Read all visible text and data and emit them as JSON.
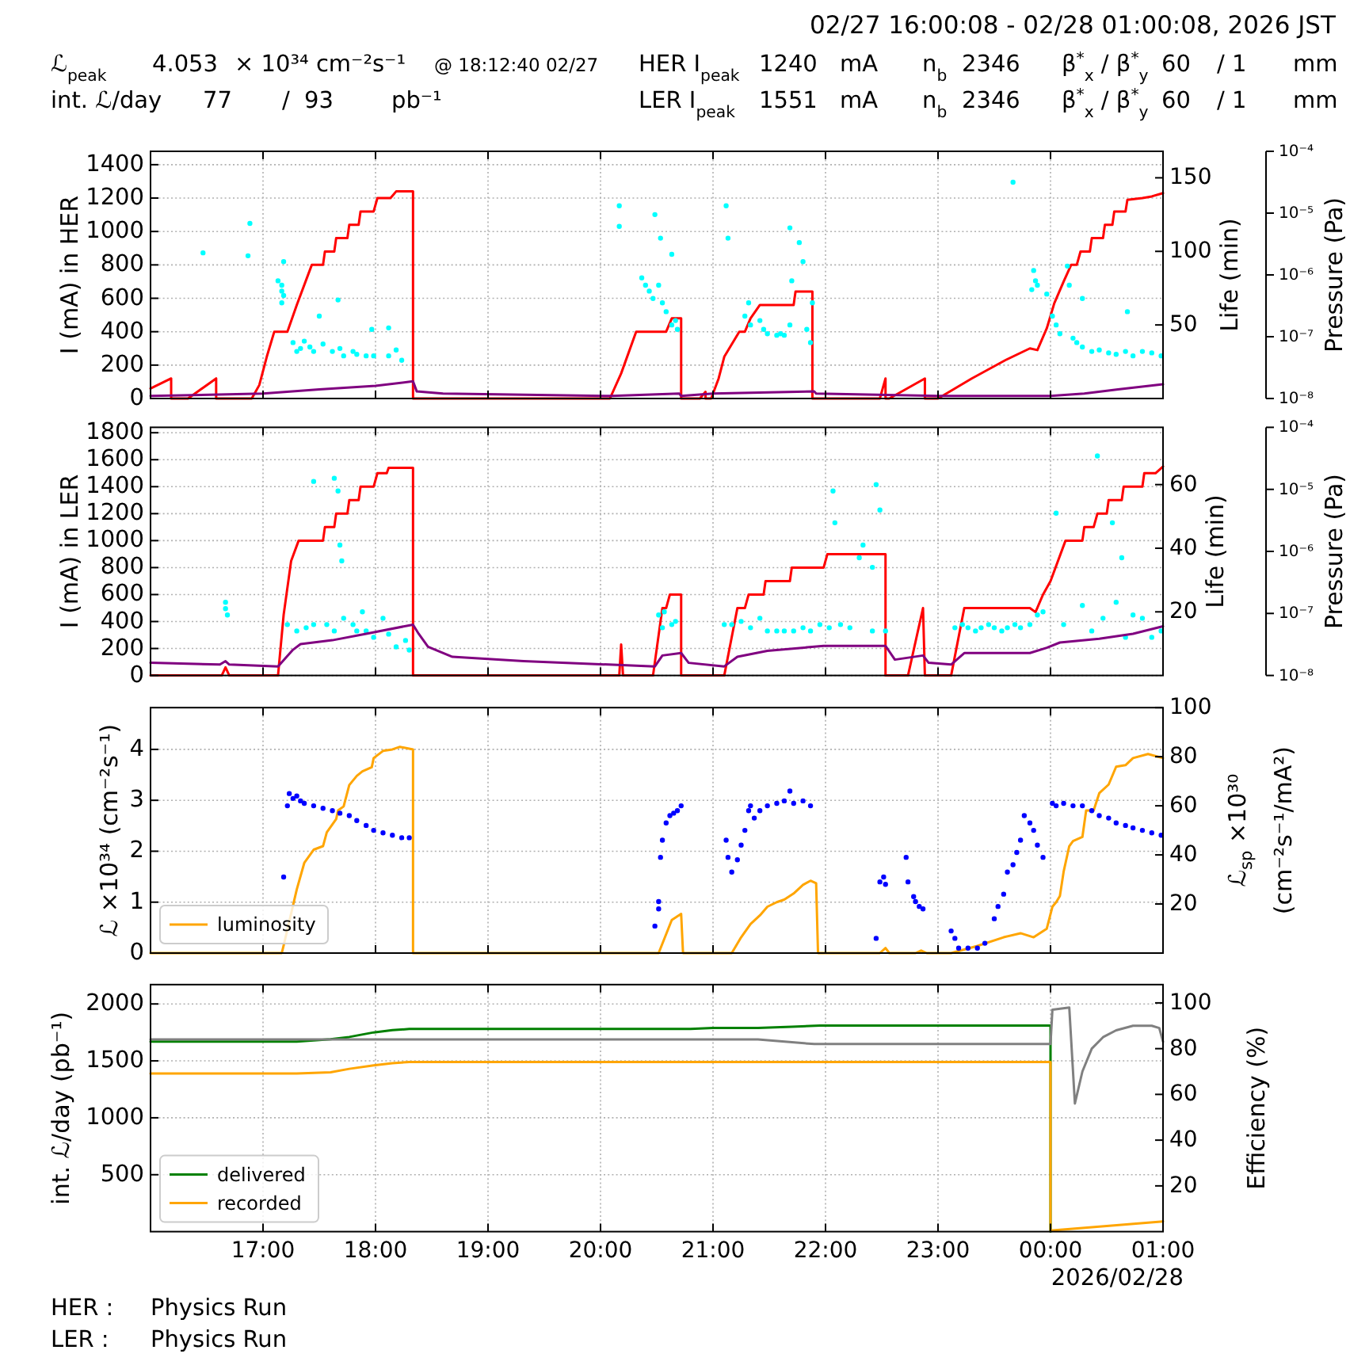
{
  "chart_data": [
    {
      "type": "line",
      "title": "02/27 16:00:08 - 02/28 01:00:08, 2026 JST",
      "annotations": [
        "ℒ$_{peak}$",
        "4.053",
        "× 10³⁴ cm⁻²s⁻¹",
        "@ 18:12:40 02/27",
        "HER I$_{peak}$",
        "1240",
        "mA",
        "n$_{b}$",
        "2346",
        "β$^{*}$$_{x}$ / β$^{*}$$_{y}$",
        "60",
        "/ 1",
        "mm",
        "int. ℒ/day",
        "77",
        "/",
        "93",
        "pb⁻¹",
        "LER I$_{peak}$",
        "1551",
        "mA",
        "n$_{b}$",
        "2346",
        "β$^{*}$$_{x}$ / β$^{*}$$_{y}$",
        "60",
        "/ 1",
        "mm"
      ],
      "xlim": [
        "2026-02-27T16:00",
        "2026-02-28T01:00"
      ],
      "xticks": [
        {
          "value": "2026-02-27T17:00",
          "label": null
        },
        {
          "value": "2026-02-27T18:00",
          "label": null
        },
        {
          "value": "2026-02-27T19:00",
          "label": null
        },
        {
          "value": "2026-02-27T20:00",
          "label": null
        },
        {
          "value": "2026-02-27T21:00",
          "label": null
        },
        {
          "value": "2026-02-27T22:00",
          "label": null
        },
        {
          "value": "2026-02-27T23:00",
          "label": null
        },
        {
          "value": "2026-02-28T00:00",
          "label": null
        },
        {
          "value": "2026-02-28T01:00",
          "label": null
        }
      ],
      "tick_labels": "y",
      "ylabel": "I (mA) in HER",
      "ylim": [
        0,
        1480
      ],
      "yticks": [
        0,
        200,
        400,
        600,
        800,
        1000,
        1200,
        1400
      ],
      "y2label": "Life (min)",
      "y2lim": [
        0,
        168
      ],
      "y2ticks": [
        50,
        100,
        150
      ],
      "y3label": "Pressure (Pa)",
      "y3lim": [
        1e-08,
        0.0001
      ],
      "y3ticks": [
        {
          "value": 1e-08,
          "label": "10⁻⁸"
        },
        {
          "value": 1e-07,
          "label": "10⁻⁷"
        },
        {
          "value": 1e-06,
          "label": "10⁻⁶"
        },
        {
          "value": 1e-05,
          "label": "10⁻⁵"
        },
        {
          "value": 0.0001,
          "label": "10⁻⁴"
        }
      ],
      "log": "y3",
      "grid": true,
      "series": [
        {
          "color": "#ff0000",
          "x": [
            "2026-02-27T16:00",
            "2026-02-27T16:11",
            "2026-02-27T16:11",
            "2026-02-27T16:20",
            "2026-02-27T16:35",
            "2026-02-27T16:35",
            "2026-02-27T16:54",
            "2026-02-27T16:58",
            "2026-02-27T17:02",
            "2026-02-27T17:06",
            "2026-02-27T17:13",
            "2026-02-27T17:18",
            "2026-02-27T17:26",
            "2026-02-27T17:32",
            "2026-02-27T17:33",
            "2026-02-27T17:38",
            "2026-02-27T17:39",
            "2026-02-27T17:45",
            "2026-02-27T17:46",
            "2026-02-27T17:51",
            "2026-02-27T17:52",
            "2026-02-27T17:59",
            "2026-02-27T18:01",
            "2026-02-27T18:08",
            "2026-02-27T18:11",
            "2026-02-27T18:20",
            "2026-02-27T18:20",
            "2026-02-27T20:05",
            "2026-02-27T20:11",
            "2026-02-27T20:19",
            "2026-02-27T20:35",
            "2026-02-27T20:38",
            "2026-02-27T20:43",
            "2026-02-27T20:43",
            "2026-02-27T20:53",
            "2026-02-27T20:56",
            "2026-02-27T20:56",
            "2026-02-27T20:59",
            "2026-02-27T21:03",
            "2026-02-27T21:06",
            "2026-02-27T21:14",
            "2026-02-27T21:17",
            "2026-02-27T21:20",
            "2026-02-27T21:25",
            "2026-02-27T21:43",
            "2026-02-27T21:44",
            "2026-02-27T21:53",
            "2026-02-27T21:53",
            "2026-02-27T22:29",
            "2026-02-27T22:32",
            "2026-02-27T22:32",
            "2026-02-27T22:34",
            "2026-02-27T22:53",
            "2026-02-27T22:53",
            "2026-02-27T23:00",
            "2026-02-27T23:18",
            "2026-02-27T23:36",
            "2026-02-27T23:49",
            "2026-02-27T23:53",
            "2026-02-27T23:58",
            "2026-02-28T00:02",
            "2026-02-28T00:07",
            "2026-02-28T00:11",
            "2026-02-28T00:14",
            "2026-02-28T00:16",
            "2026-02-28T00:21",
            "2026-02-28T00:22",
            "2026-02-28T00:28",
            "2026-02-28T00:29",
            "2026-02-28T00:33",
            "2026-02-28T00:34",
            "2026-02-28T00:40",
            "2026-02-28T00:41",
            "2026-02-28T00:49",
            "2026-02-28T00:54",
            "2026-02-28T01:00"
          ],
          "values": [
            60,
            120,
            0,
            0,
            120,
            0,
            0,
            80,
            250,
            400,
            400,
            560,
            800,
            800,
            880,
            880,
            960,
            960,
            1040,
            1040,
            1120,
            1120,
            1200,
            1200,
            1240,
            1240,
            0,
            0,
            150,
            400,
            400,
            480,
            480,
            0,
            0,
            40,
            0,
            0,
            120,
            250,
            400,
            400,
            480,
            560,
            560,
            640,
            640,
            0,
            0,
            120,
            0,
            0,
            120,
            0,
            0,
            120,
            230,
            300,
            290,
            420,
            570,
            700,
            800,
            800,
            880,
            880,
            960,
            960,
            1040,
            1040,
            1120,
            1120,
            1190,
            1200,
            1210,
            1230
          ]
        },
        {
          "type": "scatter",
          "axis": "y2",
          "color": "#00ffff",
          "marker": "circle",
          "x": [
            "2026-02-27T16:28",
            "2026-02-27T16:52",
            "2026-02-27T16:53",
            "2026-02-27T17:08",
            "2026-02-27T17:10",
            "2026-02-27T17:10",
            "2026-02-27T17:11",
            "2026-02-27T17:10",
            "2026-02-27T17:11",
            "2026-02-27T17:16",
            "2026-02-27T17:18",
            "2026-02-27T17:20",
            "2026-02-27T17:22",
            "2026-02-27T17:25",
            "2026-02-27T17:27",
            "2026-02-27T17:30",
            "2026-02-27T17:32",
            "2026-02-27T17:37",
            "2026-02-27T17:40",
            "2026-02-27T17:41",
            "2026-02-27T17:43",
            "2026-02-27T17:48",
            "2026-02-27T17:50",
            "2026-02-27T17:55",
            "2026-02-27T17:58",
            "2026-02-27T17:59",
            "2026-02-27T18:07",
            "2026-02-27T18:07",
            "2026-02-27T18:11",
            "2026-02-27T18:14",
            "2026-02-27T20:10",
            "2026-02-27T20:10",
            "2026-02-27T20:22",
            "2026-02-27T20:24",
            "2026-02-27T20:26",
            "2026-02-27T20:28",
            "2026-02-27T20:29",
            "2026-02-27T20:31",
            "2026-02-27T20:32",
            "2026-02-27T20:33",
            "2026-02-27T20:35",
            "2026-02-27T20:38",
            "2026-02-27T20:38",
            "2026-02-27T20:40",
            "2026-02-27T20:41",
            "2026-02-27T21:07",
            "2026-02-27T21:08",
            "2026-02-27T21:17",
            "2026-02-27T21:19",
            "2026-02-27T21:20",
            "2026-02-27T21:25",
            "2026-02-27T21:27",
            "2026-02-27T21:29",
            "2026-02-27T21:34",
            "2026-02-27T21:36",
            "2026-02-27T21:38",
            "2026-02-27T21:41",
            "2026-02-27T21:41",
            "2026-02-27T21:42",
            "2026-02-27T21:46",
            "2026-02-27T21:48",
            "2026-02-27T21:50",
            "2026-02-27T21:52",
            "2026-02-27T21:53",
            "2026-02-27T23:40",
            "2026-02-27T23:50",
            "2026-02-27T23:51",
            "2026-02-27T23:52",
            "2026-02-27T23:53",
            "2026-02-27T23:58",
            "2026-02-28T00:01",
            "2026-02-28T00:03",
            "2026-02-28T00:05",
            "2026-02-28T00:09",
            "2026-02-28T00:10",
            "2026-02-28T00:12",
            "2026-02-28T00:14",
            "2026-02-28T00:17",
            "2026-02-28T00:17",
            "2026-02-28T00:22",
            "2026-02-28T00:26",
            "2026-02-28T00:31",
            "2026-02-28T00:35",
            "2026-02-28T00:40",
            "2026-02-28T00:41",
            "2026-02-28T00:44",
            "2026-02-28T00:49",
            "2026-02-28T00:54",
            "2026-02-28T00:59"
          ],
          "values": [
            99,
            97,
            119,
            80,
            77,
            73,
            70,
            65,
            93,
            38,
            32,
            34,
            39,
            35,
            32,
            56,
            37,
            32,
            67,
            34,
            29,
            32,
            30,
            29,
            47,
            29,
            29,
            48,
            33,
            26,
            131,
            117,
            82,
            77,
            73,
            68,
            125,
            77,
            109,
            65,
            59,
            98,
            50,
            53,
            47,
            131,
            109,
            56,
            65,
            50,
            53,
            47,
            44,
            43,
            44,
            43,
            116,
            50,
            80,
            106,
            93,
            47,
            38,
            65,
            147,
            74,
            87,
            80,
            77,
            71,
            56,
            50,
            44,
            90,
            77,
            41,
            38,
            68,
            35,
            32,
            33,
            31,
            30,
            32,
            59,
            29,
            32,
            31,
            29
          ]
        },
        {
          "axis": "y3",
          "color": "#800080",
          "x": [
            "2026-02-27T16:00",
            "2026-02-27T17:00",
            "2026-02-27T17:30",
            "2026-02-27T18:00",
            "2026-02-27T18:20",
            "2026-02-27T18:22",
            "2026-02-27T18:36",
            "2026-02-27T20:06",
            "2026-02-27T20:42",
            "2026-02-27T20:43",
            "2026-02-27T21:00",
            "2026-02-27T21:54",
            "2026-02-27T21:55",
            "2026-02-27T23:00",
            "2026-02-28T00:00",
            "2026-02-28T00:18",
            "2026-02-28T00:36",
            "2026-02-28T01:00"
          ],
          "values": [
            1.1e-08,
            1.2e-08,
            1.4e-08,
            1.6e-08,
            1.9e-08,
            1.3e-08,
            1.2e-08,
            1.1e-08,
            1.2e-08,
            1.1e-08,
            1.2e-08,
            1.3e-08,
            1.2e-08,
            1.1e-08,
            1.1e-08,
            1.2e-08,
            1.4e-08,
            1.7e-08
          ]
        }
      ]
    },
    {
      "type": "line",
      "xlim": [
        "2026-02-27T16:00",
        "2026-02-28T01:00"
      ],
      "xticks": [
        {
          "value": "2026-02-27T17:00",
          "label": null
        },
        {
          "value": "2026-02-27T18:00",
          "label": null
        },
        {
          "value": "2026-02-27T19:00",
          "label": null
        },
        {
          "value": "2026-02-27T20:00",
          "label": null
        },
        {
          "value": "2026-02-27T21:00",
          "label": null
        },
        {
          "value": "2026-02-27T22:00",
          "label": null
        },
        {
          "value": "2026-02-27T23:00",
          "label": null
        },
        {
          "value": "2026-02-28T00:00",
          "label": null
        },
        {
          "value": "2026-02-28T01:00",
          "label": null
        }
      ],
      "tick_labels": "y",
      "ylabel": "I (mA) in LER",
      "ylim": [
        0,
        1840
      ],
      "yticks": [
        0,
        200,
        400,
        600,
        800,
        1000,
        1200,
        1400,
        1600,
        1800
      ],
      "y2label": "Life (min)",
      "y2lim": [
        0,
        78
      ],
      "y2ticks": [
        20,
        40,
        60
      ],
      "y3label": "Pressure (Pa)",
      "y3lim": [
        1e-08,
        0.0001
      ],
      "y3ticks": [
        {
          "value": 1e-08,
          "label": "10⁻⁸"
        },
        {
          "value": 1e-07,
          "label": "10⁻⁷"
        },
        {
          "value": 1e-06,
          "label": "10⁻⁶"
        },
        {
          "value": 1e-05,
          "label": "10⁻⁵"
        },
        {
          "value": 0.0001,
          "label": "10⁻⁴"
        }
      ],
      "log": "y3",
      "grid": true,
      "series": [
        {
          "color": "#ff0000",
          "x": [
            "2026-02-27T16:00",
            "2026-02-27T16:38",
            "2026-02-27T16:40",
            "2026-02-27T16:42",
            "2026-02-27T17:08",
            "2026-02-27T17:11",
            "2026-02-27T17:15",
            "2026-02-27T17:19",
            "2026-02-27T17:32",
            "2026-02-27T17:33",
            "2026-02-27T17:38",
            "2026-02-27T17:39",
            "2026-02-27T17:45",
            "2026-02-27T17:46",
            "2026-02-27T17:51",
            "2026-02-27T17:52",
            "2026-02-27T17:59",
            "2026-02-27T18:01",
            "2026-02-27T18:06",
            "2026-02-27T18:07",
            "2026-02-27T18:20",
            "2026-02-27T18:20",
            "2026-02-27T20:10",
            "2026-02-27T20:11",
            "2026-02-27T20:12",
            "2026-02-27T20:28",
            "2026-02-27T20:33",
            "2026-02-27T20:35",
            "2026-02-27T20:37",
            "2026-02-27T20:43",
            "2026-02-27T20:43",
            "2026-02-27T21:06",
            "2026-02-27T21:13",
            "2026-02-27T21:17",
            "2026-02-27T21:19",
            "2026-02-27T21:27",
            "2026-02-27T21:28",
            "2026-02-27T21:41",
            "2026-02-27T21:42",
            "2026-02-27T21:59",
            "2026-02-27T22:01",
            "2026-02-27T22:32",
            "2026-02-27T22:32",
            "2026-02-27T22:44",
            "2026-02-27T22:52",
            "2026-02-27T22:53",
            "2026-02-27T23:07",
            "2026-02-27T23:14",
            "2026-02-27T23:49",
            "2026-02-27T23:52",
            "2026-02-27T23:56",
            "2026-02-28T00:00",
            "2026-02-28T00:08",
            "2026-02-28T00:17",
            "2026-02-28T00:18",
            "2026-02-28T00:23",
            "2026-02-28T00:25",
            "2026-02-28T00:30",
            "2026-02-28T00:31",
            "2026-02-28T00:38",
            "2026-02-28T00:39",
            "2026-02-28T00:49",
            "2026-02-28T00:50",
            "2026-02-28T00:56",
            "2026-02-28T01:00"
          ],
          "values": [
            0,
            0,
            60,
            0,
            0,
            450,
            850,
            1000,
            1000,
            1100,
            1100,
            1200,
            1200,
            1300,
            1300,
            1400,
            1400,
            1500,
            1500,
            1540,
            1540,
            0,
            0,
            230,
            0,
            0,
            500,
            500,
            600,
            600,
            0,
            0,
            500,
            500,
            600,
            600,
            700,
            700,
            800,
            800,
            900,
            900,
            0,
            0,
            500,
            0,
            0,
            500,
            500,
            470,
            600,
            700,
            1000,
            1000,
            1100,
            1100,
            1200,
            1200,
            1300,
            1300,
            1400,
            1400,
            1500,
            1500,
            1550
          ]
        },
        {
          "type": "scatter",
          "axis": "y2",
          "color": "#00ffff",
          "marker": "circle",
          "x": [
            "2026-02-27T16:40",
            "2026-02-27T16:40",
            "2026-02-27T16:41",
            "2026-02-27T17:13",
            "2026-02-27T17:18",
            "2026-02-27T17:23",
            "2026-02-27T17:27",
            "2026-02-27T17:27",
            "2026-02-27T17:34",
            "2026-02-27T17:38",
            "2026-02-27T17:38",
            "2026-02-27T17:40",
            "2026-02-27T17:41",
            "2026-02-27T17:42",
            "2026-02-27T17:43",
            "2026-02-27T17:48",
            "2026-02-27T17:50",
            "2026-02-27T17:53",
            "2026-02-27T17:55",
            "2026-02-27T17:59",
            "2026-02-27T18:04",
            "2026-02-27T18:07",
            "2026-02-27T18:11",
            "2026-02-27T18:16",
            "2026-02-27T18:18",
            "2026-02-27T20:31",
            "2026-02-27T20:33",
            "2026-02-27T20:34",
            "2026-02-27T20:38",
            "2026-02-27T20:40",
            "2026-02-27T21:06",
            "2026-02-27T21:10",
            "2026-02-27T21:15",
            "2026-02-27T21:20",
            "2026-02-27T21:25",
            "2026-02-27T21:29",
            "2026-02-27T21:34",
            "2026-02-27T21:38",
            "2026-02-27T21:43",
            "2026-02-27T21:48",
            "2026-02-27T21:52",
            "2026-02-27T21:57",
            "2026-02-27T22:02",
            "2026-02-27T22:04",
            "2026-02-27T22:05",
            "2026-02-27T22:08",
            "2026-02-27T22:13",
            "2026-02-27T22:18",
            "2026-02-27T22:20",
            "2026-02-27T22:25",
            "2026-02-27T22:25",
            "2026-02-27T22:27",
            "2026-02-27T22:29",
            "2026-02-27T22:32",
            "2026-02-27T23:09",
            "2026-02-27T23:16",
            "2026-02-27T23:23",
            "2026-02-27T23:30",
            "2026-02-27T23:37",
            "2026-02-27T23:44",
            "2026-02-27T23:49",
            "2026-02-27T23:53",
            "2026-02-27T23:56",
            "2026-02-28T00:03",
            "2026-02-28T00:07",
            "2026-02-28T00:17",
            "2026-02-28T00:22",
            "2026-02-28T00:25",
            "2026-02-28T00:28",
            "2026-02-28T00:33",
            "2026-02-28T00:35",
            "2026-02-28T00:38",
            "2026-02-28T00:40",
            "2026-02-28T00:44",
            "2026-02-28T00:49",
            "2026-02-28T00:54",
            "2026-02-28T00:59",
            "2026-02-27T23:13",
            "2026-02-27T23:20",
            "2026-02-27T23:27",
            "2026-02-27T23:34",
            "2026-02-27T23:41"
          ],
          "values": [
            23,
            21,
            19,
            16,
            14,
            15,
            61,
            16,
            16,
            62,
            14,
            58,
            41,
            36,
            18,
            16,
            14,
            20,
            14,
            12,
            18,
            13,
            9,
            11,
            8,
            19,
            15,
            20,
            16,
            17,
            16,
            16,
            17,
            15,
            18,
            14,
            14,
            14,
            14,
            15,
            14,
            16,
            15,
            58,
            48,
            16,
            15,
            37,
            41,
            34,
            14,
            60,
            52,
            14,
            15,
            15,
            15,
            15,
            15,
            15,
            16,
            19,
            20,
            51,
            16,
            22,
            14,
            69,
            18,
            48,
            23,
            37,
            12,
            19,
            18,
            12,
            14,
            16,
            14,
            16,
            14,
            16
          ]
        },
        {
          "axis": "y3",
          "color": "#800080",
          "x": [
            "2026-02-27T16:00",
            "2026-02-27T16:37",
            "2026-02-27T16:40",
            "2026-02-27T16:42",
            "2026-02-27T17:08",
            "2026-02-27T17:16",
            "2026-02-27T17:20",
            "2026-02-27T17:37",
            "2026-02-27T17:55",
            "2026-02-27T18:20",
            "2026-02-27T18:23",
            "2026-02-27T18:28",
            "2026-02-27T18:41",
            "2026-02-27T19:19",
            "2026-02-27T20:29",
            "2026-02-27T20:33",
            "2026-02-27T20:43",
            "2026-02-27T20:47",
            "2026-02-27T21:06",
            "2026-02-27T21:13",
            "2026-02-27T21:29",
            "2026-02-27T21:59",
            "2026-02-27T22:32",
            "2026-02-27T22:37",
            "2026-02-27T22:52",
            "2026-02-27T22:55",
            "2026-02-27T23:07",
            "2026-02-27T23:14",
            "2026-02-27T23:49",
            "2026-02-27T23:58",
            "2026-02-28T00:05",
            "2026-02-28T00:26",
            "2026-02-28T00:44",
            "2026-02-28T01:00"
          ],
          "values": [
            1.6e-08,
            1.5e-08,
            1.7e-08,
            1.5e-08,
            1.4e-08,
            2.6e-08,
            3.2e-08,
            3.7e-08,
            4.7e-08,
            6.6e-08,
            4.7e-08,
            2.9e-08,
            2e-08,
            1.7e-08,
            1.4e-08,
            2.1e-08,
            2.3e-08,
            1.6e-08,
            1.4e-08,
            2e-08,
            2.5e-08,
            3e-08,
            3e-08,
            1.8e-08,
            2.1e-08,
            1.6e-08,
            1.5e-08,
            2.3e-08,
            2.3e-08,
            2.8e-08,
            3.4e-08,
            3.9e-08,
            4.7e-08,
            6.2e-08
          ]
        }
      ]
    },
    {
      "type": "line",
      "xlim": [
        "2026-02-27T16:00",
        "2026-02-28T01:00"
      ],
      "xticks": [
        {
          "value": "2026-02-27T17:00",
          "label": null
        },
        {
          "value": "2026-02-27T18:00",
          "label": null
        },
        {
          "value": "2026-02-27T19:00",
          "label": null
        },
        {
          "value": "2026-02-27T20:00",
          "label": null
        },
        {
          "value": "2026-02-27T21:00",
          "label": null
        },
        {
          "value": "2026-02-27T22:00",
          "label": null
        },
        {
          "value": "2026-02-27T23:00",
          "label": null
        },
        {
          "value": "2026-02-28T00:00",
          "label": null
        },
        {
          "value": "2026-02-28T01:00",
          "label": null
        }
      ],
      "tick_labels": "y",
      "ylabel": "ℒ ×10³⁴ (cm⁻²s⁻¹)",
      "ylim": [
        0,
        4.82
      ],
      "yticks": [
        0,
        1,
        2,
        3,
        4
      ],
      "y2label": "ℒ$_{sp}$ ×10³⁰\n(cm⁻²s⁻¹/mA²)",
      "y2lim": [
        0,
        100
      ],
      "y2ticks": [
        20,
        40,
        60,
        80,
        100
      ],
      "grid": true,
      "legend": "bottom left",
      "series": [
        {
          "name": "luminosity",
          "color": "#ffa500",
          "x": [
            "2026-02-27T16:00",
            "2026-02-27T17:10",
            "2026-02-27T17:11",
            "2026-02-27T17:18",
            "2026-02-27T17:22",
            "2026-02-27T17:27",
            "2026-02-27T17:32",
            "2026-02-27T17:34",
            "2026-02-27T17:39",
            "2026-02-27T17:40",
            "2026-02-27T17:43",
            "2026-02-27T17:46",
            "2026-02-27T17:50",
            "2026-02-27T17:53",
            "2026-02-27T17:58",
            "2026-02-27T17:59",
            "2026-02-27T18:04",
            "2026-02-27T18:09",
            "2026-02-27T18:13",
            "2026-02-27T18:20",
            "2026-02-27T18:20",
            "2026-02-27T20:31",
            "2026-02-27T20:38",
            "2026-02-27T20:43",
            "2026-02-27T20:44",
            "2026-02-27T21:10",
            "2026-02-27T21:15",
            "2026-02-27T21:20",
            "2026-02-27T21:25",
            "2026-02-27T21:29",
            "2026-02-27T21:34",
            "2026-02-27T21:38",
            "2026-02-27T21:43",
            "2026-02-27T21:48",
            "2026-02-27T21:52",
            "2026-02-27T21:55",
            "2026-02-27T21:56",
            "2026-02-27T22:29",
            "2026-02-27T22:32",
            "2026-02-27T22:34",
            "2026-02-27T22:48",
            "2026-02-27T22:51",
            "2026-02-27T22:54",
            "2026-02-27T23:07",
            "2026-02-27T23:21",
            "2026-02-27T23:35",
            "2026-02-27T23:44",
            "2026-02-27T23:51",
            "2026-02-27T23:58",
            "2026-02-28T00:01",
            "2026-02-28T00:03",
            "2026-02-28T00:05",
            "2026-02-28T00:07",
            "2026-02-28T00:10",
            "2026-02-28T00:12",
            "2026-02-28T00:17",
            "2026-02-28T00:19",
            "2026-02-28T00:23",
            "2026-02-28T00:26",
            "2026-02-28T00:31",
            "2026-02-28T00:35",
            "2026-02-28T00:40",
            "2026-02-28T00:44",
            "2026-02-28T00:52",
            "2026-02-28T01:00"
          ],
          "values": [
            0,
            0,
            0.15,
            1.25,
            1.77,
            2.03,
            2.1,
            2.37,
            2.63,
            2.8,
            2.88,
            3.3,
            3.48,
            3.57,
            3.65,
            3.83,
            3.97,
            4.0,
            4.05,
            4.0,
            0,
            0,
            0.65,
            0.77,
            0,
            0,
            0.31,
            0.57,
            0.74,
            0.91,
            1.0,
            1.05,
            1.17,
            1.34,
            1.42,
            1.37,
            0,
            0,
            0.1,
            0,
            0,
            0.05,
            0,
            0,
            0.14,
            0.31,
            0.39,
            0.31,
            0.48,
            0.91,
            1.0,
            1.12,
            1.6,
            2.1,
            2.2,
            2.28,
            2.8,
            2.8,
            3.14,
            3.31,
            3.66,
            3.69,
            3.83,
            3.91,
            3.83
          ]
        },
        {
          "type": "scatter",
          "axis": "y2",
          "color": "#0000ff",
          "marker": "circle",
          "x": [
            "2026-02-27T17:11",
            "2026-02-27T17:13",
            "2026-02-27T17:14",
            "2026-02-27T17:16",
            "2026-02-27T17:18",
            "2026-02-27T17:20",
            "2026-02-27T17:22",
            "2026-02-27T17:27",
            "2026-02-27T17:32",
            "2026-02-27T17:37",
            "2026-02-27T17:41",
            "2026-02-27T17:46",
            "2026-02-27T17:50",
            "2026-02-27T17:55",
            "2026-02-27T17:59",
            "2026-02-27T18:04",
            "2026-02-27T18:09",
            "2026-02-27T18:14",
            "2026-02-27T18:18",
            "2026-02-27T20:29",
            "2026-02-27T20:31",
            "2026-02-27T20:31",
            "2026-02-27T20:32",
            "2026-02-27T20:33",
            "2026-02-27T20:35",
            "2026-02-27T20:37",
            "2026-02-27T20:39",
            "2026-02-27T20:41",
            "2026-02-27T20:43",
            "2026-02-27T21:07",
            "2026-02-27T21:08",
            "2026-02-27T21:10",
            "2026-02-27T21:13",
            "2026-02-27T21:15",
            "2026-02-27T21:17",
            "2026-02-27T21:19",
            "2026-02-27T21:20",
            "2026-02-27T21:22",
            "2026-02-27T21:25",
            "2026-02-27T21:29",
            "2026-02-27T21:34",
            "2026-02-27T21:38",
            "2026-02-27T21:41",
            "2026-02-27T21:43",
            "2026-02-27T21:48",
            "2026-02-27T21:52",
            "2026-02-27T22:27",
            "2026-02-27T22:29",
            "2026-02-27T22:31",
            "2026-02-27T22:32",
            "2026-02-27T22:43",
            "2026-02-27T22:44",
            "2026-02-27T22:47",
            "2026-02-27T22:48",
            "2026-02-27T22:50",
            "2026-02-27T22:52",
            "2026-02-27T23:07",
            "2026-02-27T23:09",
            "2026-02-27T23:11",
            "2026-02-27T23:16",
            "2026-02-27T23:21",
            "2026-02-27T23:25",
            "2026-02-27T23:30",
            "2026-02-27T23:32",
            "2026-02-27T23:35",
            "2026-02-27T23:37",
            "2026-02-27T23:40",
            "2026-02-27T23:42",
            "2026-02-27T23:44",
            "2026-02-27T23:46",
            "2026-02-27T23:49",
            "2026-02-27T23:51",
            "2026-02-27T23:53",
            "2026-02-27T23:56",
            "2026-02-28T00:01",
            "2026-02-28T00:03",
            "2026-02-28T00:07",
            "2026-02-28T00:12",
            "2026-02-28T00:17",
            "2026-02-28T00:22",
            "2026-02-28T00:26",
            "2026-02-28T00:31",
            "2026-02-28T00:35",
            "2026-02-28T00:40",
            "2026-02-28T00:44",
            "2026-02-28T00:49",
            "2026-02-28T00:54",
            "2026-02-28T00:59"
          ],
          "values": [
            31,
            60,
            65,
            63,
            64,
            62,
            61,
            60,
            59,
            58,
            57,
            56,
            54,
            52,
            50,
            49,
            48,
            47,
            47,
            11,
            18,
            21,
            39,
            46,
            53,
            56,
            57,
            58,
            60,
            46,
            39,
            33,
            38,
            44,
            50,
            58,
            60,
            55,
            58,
            60,
            61,
            62,
            66,
            61,
            62,
            60,
            6,
            29,
            31,
            28,
            39,
            29,
            23,
            21,
            19,
            18,
            9,
            6,
            2,
            2,
            2,
            4,
            14,
            19,
            24,
            33,
            36,
            41,
            46,
            56,
            53,
            50,
            44,
            39,
            61,
            60,
            61,
            60,
            60,
            58,
            56,
            55,
            53,
            52,
            51,
            50,
            49,
            48
          ]
        }
      ]
    },
    {
      "type": "line",
      "annotations": [
        "2026/02/28",
        "HER :",
        "Physics Run",
        "LER :",
        "Physics Run"
      ],
      "xlim": [
        "2026-02-27T16:00",
        "2026-02-28T01:00"
      ],
      "xticks": [
        {
          "value": "2026-02-27T17:00",
          "label": "17:00"
        },
        {
          "value": "2026-02-27T18:00",
          "label": "18:00"
        },
        {
          "value": "2026-02-27T19:00",
          "label": "19:00"
        },
        {
          "value": "2026-02-27T20:00",
          "label": "20:00"
        },
        {
          "value": "2026-02-27T21:00",
          "label": "21:00"
        },
        {
          "value": "2026-02-27T22:00",
          "label": "22:00"
        },
        {
          "value": "2026-02-27T23:00",
          "label": "23:00"
        },
        {
          "value": "2026-02-28T00:00",
          "label": "00:00"
        },
        {
          "value": "2026-02-28T01:00",
          "label": "01:00"
        }
      ],
      "ylabel": "int. ℒ/day (pb⁻¹)",
      "ylim": [
        0,
        2170
      ],
      "yticks": [
        500,
        1000,
        1500,
        2000
      ],
      "y2label": "Efficiency (%)",
      "y2lim": [
        0,
        108
      ],
      "y2ticks": [
        20,
        40,
        60,
        80,
        100
      ],
      "grid": true,
      "legend": "bottom left",
      "series": [
        {
          "name": "delivered",
          "color": "#008000",
          "x": [
            "2026-02-27T16:00",
            "2026-02-27T17:18",
            "2026-02-27T17:36",
            "2026-02-27T17:46",
            "2026-02-27T17:59",
            "2026-02-27T18:09",
            "2026-02-27T18:18",
            "2026-02-27T20:48",
            "2026-02-27T21:00",
            "2026-02-27T21:24",
            "2026-02-27T21:42",
            "2026-02-27T21:57",
            "2026-02-28T00:00",
            "2026-02-28T00:00"
          ],
          "values": [
            1670,
            1670,
            1690,
            1710,
            1750,
            1770,
            1780,
            1780,
            1790,
            1790,
            1800,
            1810,
            1810,
            0
          ]
        },
        {
          "name": "recorded",
          "color": "#ffa500",
          "x": [
            "2026-02-27T16:00",
            "2026-02-27T17:18",
            "2026-02-27T17:36",
            "2026-02-27T17:46",
            "2026-02-27T17:59",
            "2026-02-27T18:09",
            "2026-02-27T18:18",
            "2026-02-28T00:00",
            "2026-02-28T00:00",
            "2026-02-28T01:00"
          ],
          "values": [
            1390,
            1390,
            1400,
            1430,
            1460,
            1480,
            1490,
            1490,
            10,
            90
          ]
        },
        {
          "axis": "y2",
          "color": "#808080",
          "x": [
            "2026-02-27T16:00",
            "2026-02-27T17:18",
            "2026-02-27T18:18",
            "2026-02-27T21:24",
            "2026-02-27T21:54",
            "2026-02-28T00:00",
            "2026-02-28T00:01",
            "2026-02-28T00:10",
            "2026-02-28T00:13",
            "2026-02-28T00:17",
            "2026-02-28T00:22",
            "2026-02-28T00:28",
            "2026-02-28T00:35",
            "2026-02-28T00:44",
            "2026-02-28T00:54",
            "2026-02-28T00:58",
            "2026-02-28T01:00"
          ],
          "values": [
            84,
            84,
            84,
            84,
            82,
            82,
            97,
            98,
            56,
            70,
            80,
            85,
            88,
            90,
            90,
            89,
            83
          ]
        }
      ]
    }
  ]
}
